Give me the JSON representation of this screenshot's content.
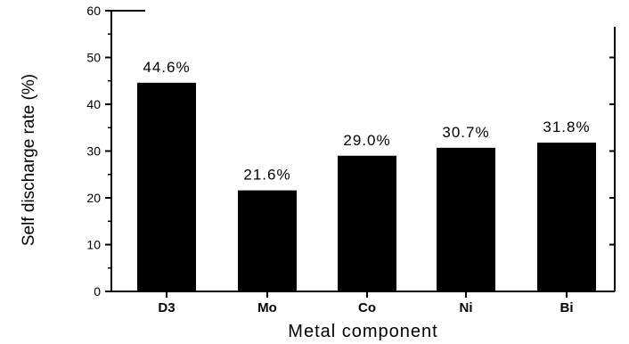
{
  "chart_data": {
    "type": "bar",
    "title": "",
    "xlabel": "Metal component",
    "ylabel": "Self discharge rate (%)",
    "categories": [
      "D3",
      "Mo",
      "Co",
      "Ni",
      "Bi"
    ],
    "values": [
      44.6,
      21.6,
      29.0,
      30.7,
      31.8
    ],
    "data_labels": [
      "44.6%",
      "21.6%",
      "29.0%",
      "30.7%",
      "31.8%"
    ],
    "ylim": [
      0,
      60
    ],
    "yticks": [
      0,
      10,
      20,
      30,
      40,
      50,
      60
    ],
    "grid": false,
    "bar_color": "#000000"
  }
}
